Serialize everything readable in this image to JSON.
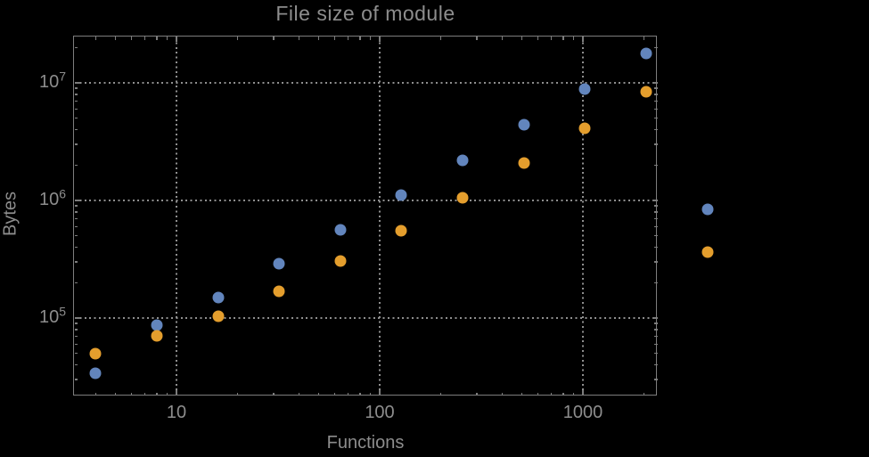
{
  "title": "File size of module",
  "colors": {
    "background": "#000000",
    "text": "#8d8d8d",
    "frame": "#7d7d7d",
    "gridline": "#8f8f8f",
    "series_blue": "#6285bd",
    "series_orange": "#e49e2d"
  },
  "x_axis": {
    "label": "Functions",
    "ticks": [
      "10",
      "100",
      "1000"
    ],
    "tick_values": [
      10,
      100,
      1000
    ]
  },
  "y_axis": {
    "label": "Bytes",
    "tick_base": "10",
    "tick_exponents": [
      5,
      6,
      7
    ]
  },
  "chart_data": {
    "type": "scatter",
    "title": "File size of module",
    "xlabel": "Functions",
    "ylabel": "Bytes",
    "x_scale": "log",
    "y_scale": "log",
    "x_range": [
      3.1,
      2380
    ],
    "y_range": [
      21500,
      25200000
    ],
    "grid": "dotted",
    "legend": "none",
    "x": [
      4,
      8,
      16,
      32,
      64,
      128,
      256,
      512,
      1024,
      2048,
      4096
    ],
    "series": [
      {
        "name": "series-1-blue",
        "color": "#6285bd",
        "values": [
          34000,
          87000,
          150000,
          290000,
          560000,
          1120000,
          2200000,
          4400000,
          8800000,
          17800000,
          840000
        ]
      },
      {
        "name": "series-2-orange",
        "color": "#e49e2d",
        "values": [
          50000,
          70000,
          104000,
          170000,
          305000,
          550000,
          1050000,
          2080000,
          4100000,
          8400000,
          365000
        ]
      }
    ]
  }
}
